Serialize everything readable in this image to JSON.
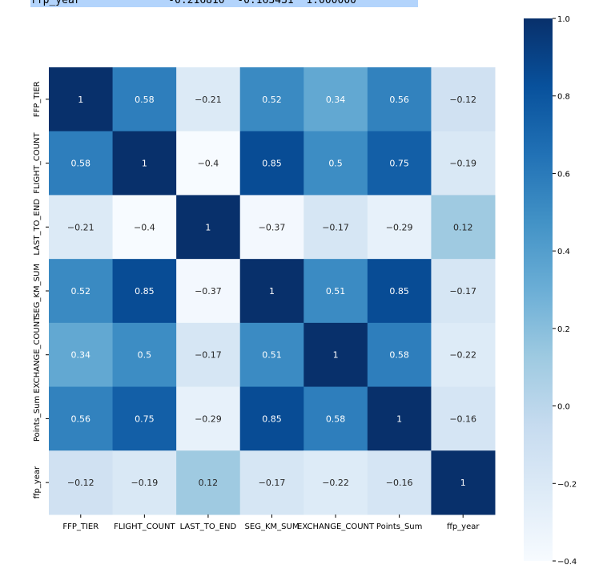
{
  "output_line": "ffp_year              -0.216810  -0.163431  1.000000",
  "chart_data": {
    "type": "heatmap",
    "title": "",
    "colormap": "Blues",
    "annotated": true,
    "x_labels": [
      "FFP_TIER",
      "FLIGHT_COUNT",
      "LAST_TO_END",
      "SEG_KM_SUM",
      "EXCHANGE_COUNT",
      "Points_Sum",
      "ffp_year"
    ],
    "y_labels": [
      "FFP_TIER",
      "FLIGHT_COUNT",
      "LAST_TO_END",
      "SEG_KM_SUM",
      "EXCHANGE_COUNT",
      "Points_Sum",
      "ffp_year"
    ],
    "values": [
      [
        1,
        0.58,
        -0.21,
        0.52,
        0.34,
        0.56,
        -0.12
      ],
      [
        0.58,
        1,
        -0.4,
        0.85,
        0.5,
        0.75,
        -0.19
      ],
      [
        -0.21,
        -0.4,
        1,
        -0.37,
        -0.17,
        -0.29,
        0.12
      ],
      [
        0.52,
        0.85,
        -0.37,
        1,
        0.51,
        0.85,
        -0.17
      ],
      [
        0.34,
        0.5,
        -0.17,
        0.51,
        1,
        0.58,
        -0.22
      ],
      [
        0.56,
        0.75,
        -0.29,
        0.85,
        0.58,
        1,
        -0.16
      ],
      [
        -0.12,
        -0.19,
        0.12,
        -0.17,
        -0.22,
        -0.16,
        1
      ]
    ],
    "vmin": -0.4,
    "vmax": 1.0,
    "colorbar": {
      "ticks": [
        1.0,
        0.8,
        0.6,
        0.4,
        0.2,
        0.0,
        -0.2,
        -0.4
      ],
      "tick_labels": [
        "1.0",
        "0.8",
        "0.6",
        "0.4",
        "0.2",
        "0.0",
        "-0.2",
        "-0.4"
      ],
      "placement": "right"
    }
  }
}
